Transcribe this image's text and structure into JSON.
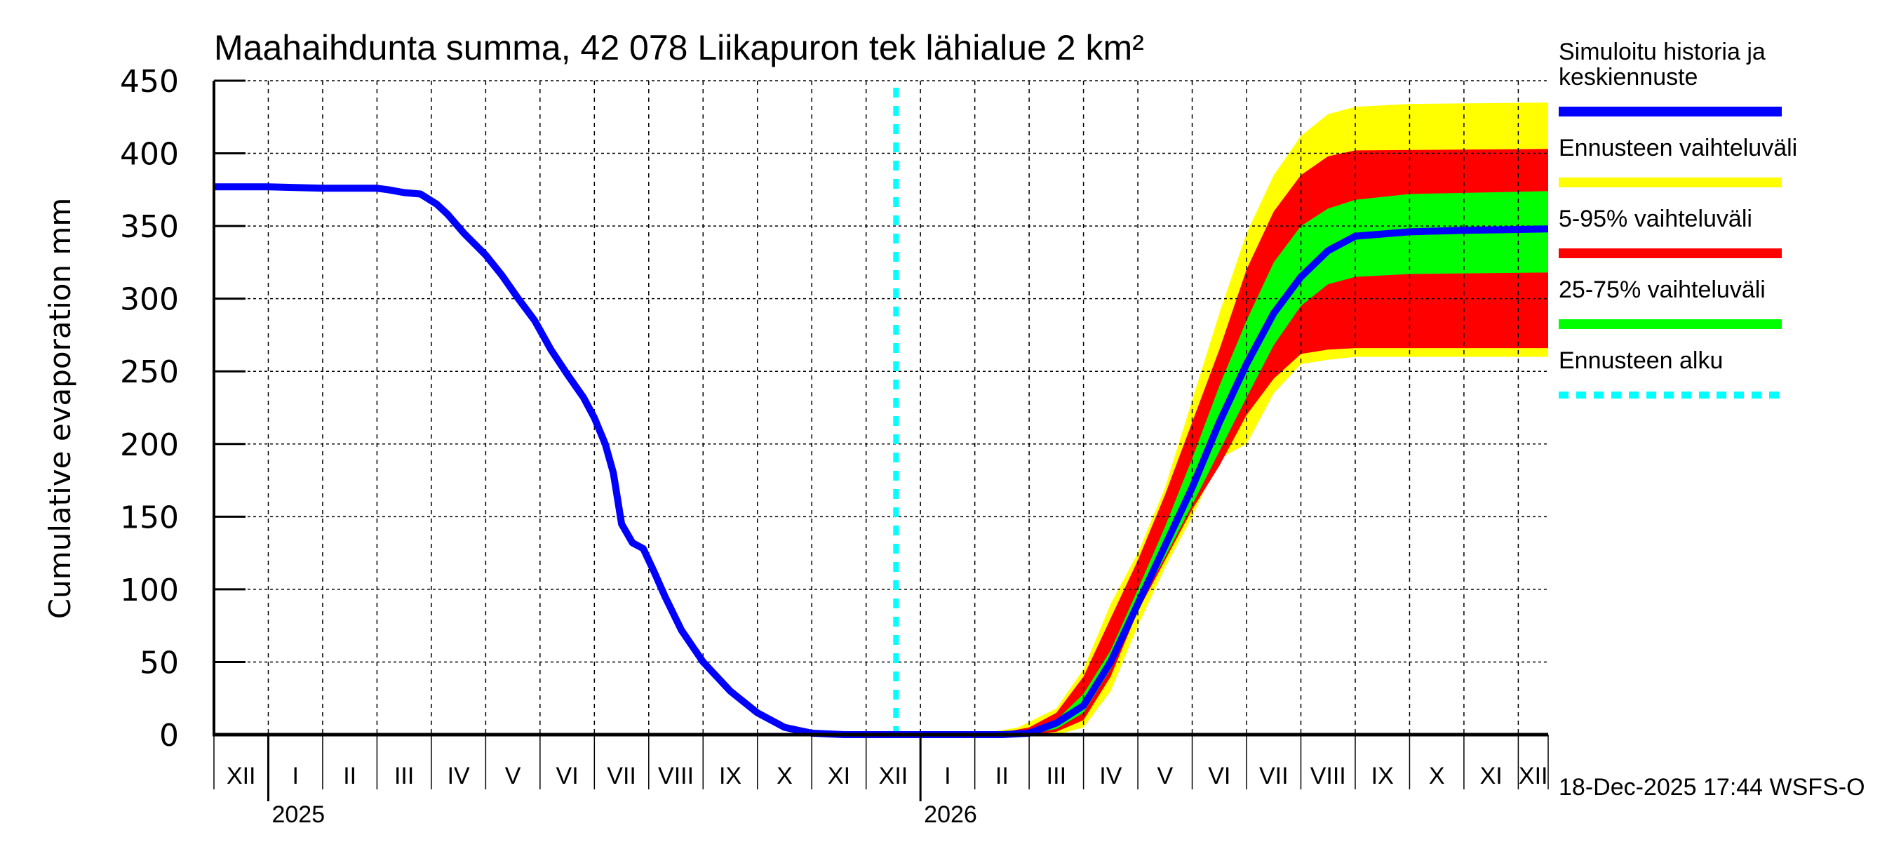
{
  "chart_data": {
    "type": "area",
    "title": "Maahaihdunta summa, 42 078 Liikapuron tek lähialue 2 km²",
    "xlabel": "",
    "ylabel": "Cumulative evaporation   mm",
    "ylim": [
      0,
      450
    ],
    "yticks": [
      0,
      50,
      100,
      150,
      200,
      250,
      300,
      350,
      400,
      450
    ],
    "grid": true,
    "x_unit": "months since 1-Dec-2024",
    "xlim": [
      0,
      24.55
    ],
    "month_labels": [
      "XII",
      "I",
      "II",
      "III",
      "IV",
      "V",
      "VI",
      "VII",
      "VIII",
      "IX",
      "X",
      "XI",
      "XII",
      "I",
      "II",
      "III",
      "IV",
      "V",
      "VI",
      "VII",
      "VIII",
      "IX",
      "X",
      "XI",
      "XII"
    ],
    "year_labels": [
      {
        "label": "2025",
        "x": 1
      },
      {
        "label": "2026",
        "x": 13
      }
    ],
    "forecast_start_x": 12.55,
    "timestamp": "18-Dec-2025 17:44 WSFS-O",
    "series": [
      {
        "name": "Simuloitu historia ja keskiennuste",
        "kind": "line",
        "color": "#0000ff",
        "x": [
          0,
          1,
          2,
          3,
          3.2,
          3.5,
          3.8,
          4.1,
          4.3,
          4.6,
          5,
          5.3,
          5.6,
          5.9,
          6.2,
          6.5,
          6.8,
          7.0,
          7.2,
          7.35,
          7.5,
          7.7,
          7.9,
          8.1,
          8.3,
          8.6,
          9.0,
          9.5,
          10.0,
          10.5,
          11.0,
          11.6,
          12.55,
          14.5,
          15.0,
          15.5,
          16.0,
          16.5,
          17.0,
          17.5,
          18.0,
          18.5,
          19.0,
          19.5,
          20.0,
          20.5,
          21.0,
          22.0,
          23.0,
          24.55
        ],
        "values": [
          377,
          377,
          376,
          376,
          375,
          373,
          372,
          365,
          358,
          345,
          330,
          316,
          300,
          285,
          265,
          248,
          232,
          218,
          200,
          180,
          145,
          132,
          128,
          112,
          95,
          72,
          50,
          30,
          15,
          5,
          1,
          0,
          0,
          0,
          1,
          8,
          20,
          50,
          90,
          130,
          170,
          215,
          255,
          290,
          315,
          333,
          343,
          346,
          347,
          348
        ]
      },
      {
        "name": "Ennusteen vaihteluväli",
        "kind": "band",
        "color": "#ffff00",
        "x": [
          12.55,
          14.0,
          14.8,
          15.5,
          16.0,
          16.5,
          17.0,
          17.5,
          18.0,
          18.5,
          19.0,
          19.5,
          20.0,
          20.5,
          21.0,
          22.0,
          24.55
        ],
        "lower": [
          0,
          0,
          0,
          0,
          5,
          30,
          75,
          115,
          150,
          190,
          200,
          235,
          255,
          258,
          260,
          260,
          260
        ],
        "upper": [
          0,
          0,
          5,
          18,
          45,
          90,
          125,
          170,
          230,
          290,
          345,
          385,
          412,
          427,
          432,
          434,
          435
        ]
      },
      {
        "name": "5-95% vaihteluväli",
        "kind": "band",
        "color": "#ff0000",
        "x": [
          12.55,
          14.3,
          15.0,
          15.5,
          16.0,
          16.5,
          17.0,
          17.5,
          18.0,
          18.5,
          19.0,
          19.5,
          20.0,
          20.5,
          21.0,
          24.55
        ],
        "lower": [
          0,
          0,
          0,
          2,
          10,
          40,
          85,
          120,
          155,
          185,
          220,
          245,
          262,
          265,
          266,
          266
        ],
        "upper": [
          0,
          0,
          5,
          15,
          40,
          80,
          120,
          165,
          215,
          265,
          320,
          360,
          385,
          398,
          402,
          403
        ]
      },
      {
        "name": "25-75% vaihteluväli",
        "kind": "band",
        "color": "#00ff00",
        "x": [
          12.55,
          15.0,
          15.5,
          16.0,
          16.5,
          17.0,
          17.5,
          18.0,
          18.5,
          19.0,
          19.5,
          20.0,
          20.5,
          21.0,
          22.0,
          24.55
        ],
        "lower": [
          0,
          0,
          4,
          15,
          45,
          88,
          122,
          158,
          195,
          232,
          268,
          295,
          310,
          315,
          317,
          318
        ],
        "upper": [
          0,
          2,
          10,
          28,
          58,
          100,
          143,
          190,
          240,
          285,
          325,
          350,
          362,
          368,
          372,
          374
        ]
      },
      {
        "name": "Ennusteen alku",
        "kind": "vline",
        "color": "#00ffff"
      }
    ],
    "legend": {
      "placement": "right",
      "entries": [
        {
          "label": "Simuloitu historia ja keskiennuste",
          "lines": [
            "Simuloitu historia ja",
            "keskiennuste"
          ],
          "color": "#0000ff",
          "style": "solid"
        },
        {
          "label": "Ennusteen vaihteluväli",
          "lines": [
            "Ennusteen vaihteluväli"
          ],
          "color": "#ffff00",
          "style": "solid"
        },
        {
          "label": "5-95% vaihteluväli",
          "lines": [
            "5-95% vaihteluväli"
          ],
          "color": "#ff0000",
          "style": "solid"
        },
        {
          "label": "25-75% vaihteluväli",
          "lines": [
            "25-75% vaihteluväli"
          ],
          "color": "#00ff00",
          "style": "solid"
        },
        {
          "label": "Ennusteen alku",
          "lines": [
            "Ennusteen alku"
          ],
          "color": "#00ffff",
          "style": "dotted"
        }
      ]
    }
  }
}
